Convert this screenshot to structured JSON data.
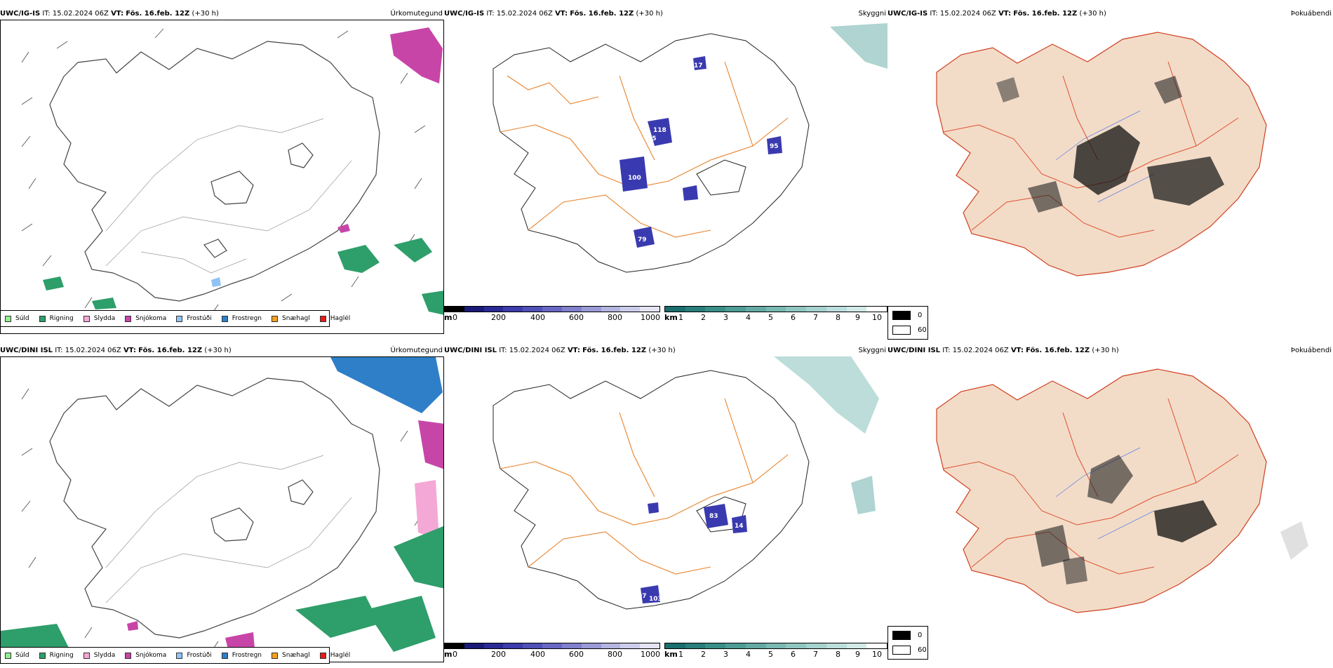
{
  "run": {
    "it_label": "IT:",
    "it_value": "15.02.2024 06Z",
    "vt_label": "VT:",
    "vt_value": "Fös. 16.feb. 12Z",
    "lead": "(+30 h)"
  },
  "rows": [
    {
      "model": "UWC/IG-IS"
    },
    {
      "model": "UWC/DINI ISL"
    }
  ],
  "titles": {
    "precip": "Úrkomutegund",
    "cloud": "Skyggni",
    "fog": "Þokuábendi"
  },
  "precip_legend": [
    {
      "label": "Súld",
      "color": "#90ee90"
    },
    {
      "label": "Rigning",
      "color": "#2e9e6a"
    },
    {
      "label": "Slydda",
      "color": "#f4a8d6"
    },
    {
      "label": "Snjókoma",
      "color": "#c845a8"
    },
    {
      "label": "Frostúði",
      "color": "#8fc3f5"
    },
    {
      "label": "Frostregn",
      "color": "#2f7fc8"
    },
    {
      "label": "Snæhagl",
      "color": "#f5a020"
    },
    {
      "label": "Haglél",
      "color": "#e81a1a"
    }
  ],
  "height_scale": {
    "unit": "m",
    "ticks": [
      "0",
      "200",
      "400",
      "600",
      "800",
      "1000"
    ],
    "colors": [
      "#000000",
      "#1a1a78",
      "#2a2a96",
      "#3c3cac",
      "#5050b8",
      "#6868c4",
      "#8080cc",
      "#9a9ad6",
      "#b4b4e0",
      "#ccccea",
      "#e4e4f4"
    ]
  },
  "vis_scale": {
    "unit": "km",
    "ticks": [
      "1",
      "2",
      "3",
      "4",
      "5",
      "6",
      "7",
      "8",
      "9",
      "10"
    ],
    "colors": [
      "#1a6e6e",
      "#2a7e7a",
      "#3a8e88",
      "#4e9c96",
      "#64aaa4",
      "#7ab8b2",
      "#90c6c0",
      "#a6d2ce",
      "#bcdedc",
      "#d2eae8",
      "#ffffff"
    ]
  },
  "fog_legend": [
    {
      "label": "0",
      "color": "#000000"
    },
    {
      "label": "60",
      "color": "#ffffff"
    }
  ],
  "cloud_labels": [
    [
      {
        "text": "17"
      },
      {
        "text": "118"
      },
      {
        "text": "05"
      },
      {
        "text": "100"
      },
      {
        "text": "95"
      },
      {
        "text": "79"
      }
    ],
    [
      {
        "text": "83"
      },
      {
        "text": "14"
      },
      {
        "text": "07"
      },
      {
        "text": "103"
      }
    ]
  ]
}
